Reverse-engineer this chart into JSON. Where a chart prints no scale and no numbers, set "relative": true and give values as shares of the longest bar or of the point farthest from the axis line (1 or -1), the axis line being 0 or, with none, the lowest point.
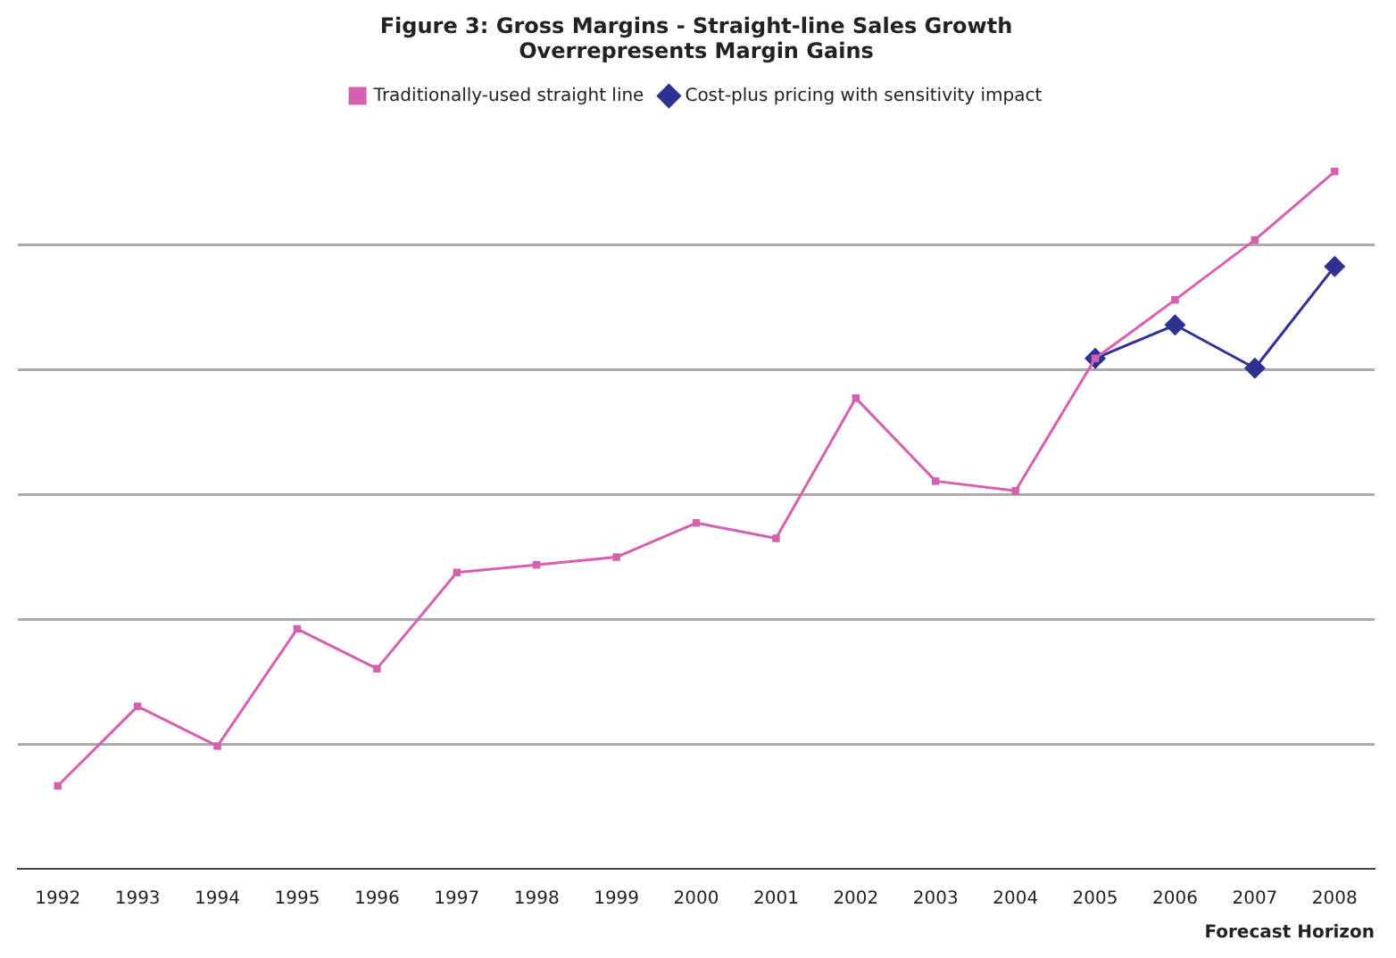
{
  "chart_data": {
    "type": "line",
    "title": "Figure 3: Gross Margins - Straight-line Sales Growth\nOverrepresents Margin Gains",
    "xlabel": "Forecast Horizon",
    "relative": true,
    "grid": "y",
    "legend": "top",
    "line_style": "solid",
    "categories": [
      "1992",
      "1993",
      "1994",
      "1995",
      "1996",
      "1997",
      "1998",
      "1999",
      "2000",
      "2001",
      "2002",
      "2003",
      "2004",
      "2005",
      "2006",
      "2007",
      "2008"
    ],
    "series": [
      {
        "name": "Cost-plus pricing with sensitivity impact",
        "color": "#2e3192",
        "marker": "diamond",
        "values": [
          null,
          null,
          null,
          null,
          null,
          null,
          null,
          null,
          null,
          null,
          null,
          null,
          null,
          0.732,
          0.78,
          0.718,
          0.864
        ]
      },
      {
        "name": "Traditionally-used straight line",
        "color": "#d560b0",
        "marker": "square",
        "values": [
          0.119,
          0.233,
          0.176,
          0.344,
          0.287,
          0.425,
          0.436,
          0.447,
          0.496,
          0.474,
          0.675,
          0.556,
          0.542,
          0.732,
          0.816,
          0.902,
          1
        ]
      }
    ]
  }
}
